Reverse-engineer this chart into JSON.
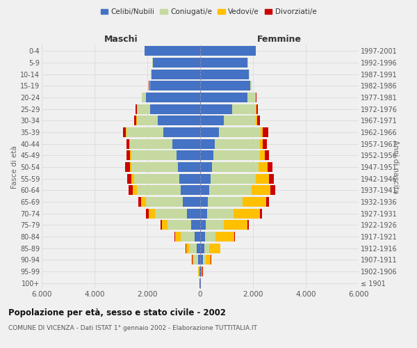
{
  "age_groups": [
    "100+",
    "95-99",
    "90-94",
    "85-89",
    "80-84",
    "75-79",
    "70-74",
    "65-69",
    "60-64",
    "55-59",
    "50-54",
    "45-49",
    "40-44",
    "35-39",
    "30-34",
    "25-29",
    "20-24",
    "15-19",
    "10-14",
    "5-9",
    "0-4"
  ],
  "birth_years": [
    "≤ 1901",
    "1902-1906",
    "1907-1911",
    "1912-1916",
    "1917-1921",
    "1922-1926",
    "1927-1931",
    "1932-1936",
    "1937-1941",
    "1942-1946",
    "1947-1951",
    "1952-1956",
    "1957-1961",
    "1962-1966",
    "1967-1971",
    "1972-1976",
    "1977-1981",
    "1982-1986",
    "1987-1991",
    "1992-1996",
    "1997-2001"
  ],
  "male": {
    "celibi": [
      20,
      30,
      80,
      130,
      200,
      350,
      500,
      650,
      750,
      800,
      850,
      900,
      1050,
      1400,
      1600,
      1900,
      2050,
      1900,
      1850,
      1800,
      2100
    ],
    "coniugati": [
      10,
      30,
      150,
      300,
      550,
      900,
      1200,
      1400,
      1650,
      1700,
      1750,
      1700,
      1600,
      1400,
      800,
      500,
      150,
      30,
      20,
      10,
      5
    ],
    "vedovi": [
      5,
      20,
      70,
      100,
      200,
      200,
      250,
      200,
      150,
      100,
      70,
      50,
      30,
      20,
      10,
      5,
      5,
      0,
      0,
      0,
      0
    ],
    "divorziati": [
      2,
      5,
      10,
      20,
      30,
      50,
      100,
      100,
      150,
      170,
      160,
      150,
      120,
      100,
      80,
      40,
      10,
      5,
      0,
      0,
      0
    ]
  },
  "female": {
    "nubili": [
      20,
      40,
      100,
      150,
      180,
      200,
      250,
      300,
      350,
      400,
      450,
      500,
      550,
      700,
      900,
      1200,
      1800,
      1900,
      1850,
      1800,
      2100
    ],
    "coniugate": [
      10,
      20,
      100,
      200,
      400,
      700,
      1000,
      1300,
      1600,
      1700,
      1750,
      1750,
      1700,
      1600,
      1200,
      900,
      300,
      50,
      20,
      10,
      5
    ],
    "vedove": [
      5,
      30,
      200,
      400,
      700,
      900,
      1000,
      900,
      700,
      500,
      350,
      200,
      120,
      80,
      50,
      30,
      10,
      5,
      0,
      0,
      0
    ],
    "divorziate": [
      2,
      5,
      10,
      20,
      30,
      50,
      80,
      100,
      200,
      200,
      180,
      150,
      150,
      200,
      100,
      50,
      20,
      5,
      0,
      0,
      0
    ]
  },
  "colors": {
    "celibi": "#4472c4",
    "coniugati": "#c5d9a0",
    "vedovi": "#ffc000",
    "divorziati": "#cc0000"
  },
  "xlim": 6000,
  "title": "Popolazione per età, sesso e stato civile - 2002",
  "subtitle": "COMUNE DI VICENZA - Dati ISTAT 1° gennaio 2002 - Elaborazione TUTTITALIA.IT",
  "xlabel_left": "Maschi",
  "xlabel_right": "Femmine",
  "ylabel_left": "Fasce di età",
  "ylabel_right": "Anni di nascita",
  "background_color": "#f0f0f0",
  "grid_color": "#dddddd"
}
